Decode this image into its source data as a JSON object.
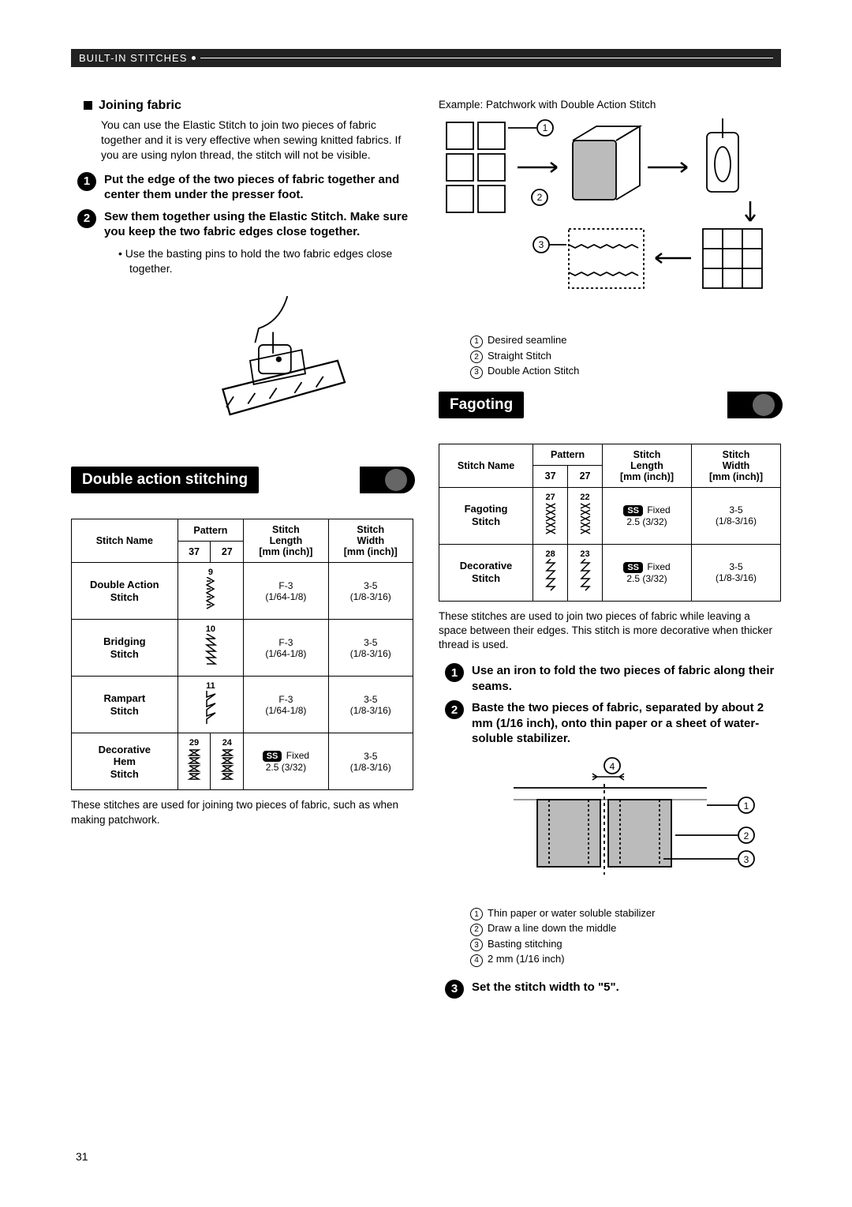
{
  "header": "BUILT-IN STITCHES",
  "page_number": "31",
  "left": {
    "joining_title": "Joining fabric",
    "joining_para": "You can use the Elastic Stitch to join two pieces of fabric together and it is very effective when sewing knitted fabrics. If you are using nylon thread, the stitch will not be visible.",
    "step1": "Put the edge of the two pieces of fabric together and center them under the presser foot.",
    "step2": "Sew them together using the Elastic Stitch. Make sure you keep the two fabric edges close together.",
    "bullet": "Use the basting pins to hold the two fabric edges close together.",
    "section": "Double action stitching",
    "table_note": "These stitches are used for joining two pieces of fabric, such as when making patchwork.",
    "table": {
      "headers": {
        "name": "Stitch Name",
        "pattern": "Pattern",
        "p37": "37",
        "p27": "27",
        "len": "Stitch Length [mm (inch)]",
        "wid": "Stitch Width [mm (inch)]"
      },
      "rows": [
        {
          "name": "Double Action Stitch",
          "p37": "9",
          "p27": "",
          "len": "F-3 (1/64-1/8)",
          "wid": "3-5 (1/8-3/16)",
          "pattern37_svg": "das"
        },
        {
          "name": "Bridging Stitch",
          "p37": "10",
          "p27": "",
          "len": "F-3 (1/64-1/8)",
          "wid": "3-5 (1/8-3/16)",
          "pattern37_svg": "bridge"
        },
        {
          "name": "Rampart Stitch",
          "p37": "11",
          "p27": "",
          "len": "F-3 (1/64-1/8)",
          "wid": "3-5 (1/8-3/16)",
          "pattern37_svg": "rampart"
        },
        {
          "name": "Decorative Hem Stitch",
          "p37": "29",
          "p27": "24",
          "len": "Fixed 2.5 (3/32)",
          "wid": "3-5 (1/8-3/16)",
          "ss": true,
          "pattern37_svg": "hem",
          "pattern27_svg": "hem"
        }
      ]
    }
  },
  "right": {
    "example_title": "Example: Patchwork with Double Action Stitch",
    "legend1": [
      {
        "n": "1",
        "t": "Desired seamline"
      },
      {
        "n": "2",
        "t": "Straight Stitch"
      },
      {
        "n": "3",
        "t": "Double Action Stitch"
      }
    ],
    "section": "Fagoting",
    "table": {
      "headers": {
        "name": "Stitch Name",
        "pattern": "Pattern",
        "p37": "37",
        "p27": "27",
        "len": "Stitch Length [mm (inch)]",
        "wid": "Stitch Width [mm (inch)]"
      },
      "rows": [
        {
          "name": "Fagoting Stitch",
          "p37": "27",
          "p27": "22",
          "len": "Fixed 2.5 (3/32)",
          "wid": "3-5 (1/8-3/16)",
          "ss": true,
          "pattern37_svg": "fagot",
          "pattern27_svg": "fagot"
        },
        {
          "name": "Decorative Stitch",
          "p37": "28",
          "p27": "23",
          "len": "Fixed 2.5 (3/32)",
          "wid": "3-5 (1/8-3/16)",
          "ss": true,
          "pattern37_svg": "deco",
          "pattern27_svg": "deco"
        }
      ]
    },
    "table_note": "These stitches are used to join two pieces of fabric while leaving a space between their edges. This stitch is more decorative when thicker thread is used.",
    "step1": "Use an iron to fold the two pieces of fabric along their seams.",
    "step2": "Baste the two pieces of fabric, separated by about 2 mm (1/16 inch), onto thin paper or a sheet of water-soluble stabilizer.",
    "legend2": [
      {
        "n": "1",
        "t": "Thin paper or water soluble stabilizer"
      },
      {
        "n": "2",
        "t": "Draw a line down the middle"
      },
      {
        "n": "3",
        "t": "Basting stitching"
      },
      {
        "n": "4",
        "t": "2 mm (1/16 inch)"
      }
    ],
    "step3": "Set the stitch width to \"5\"."
  }
}
